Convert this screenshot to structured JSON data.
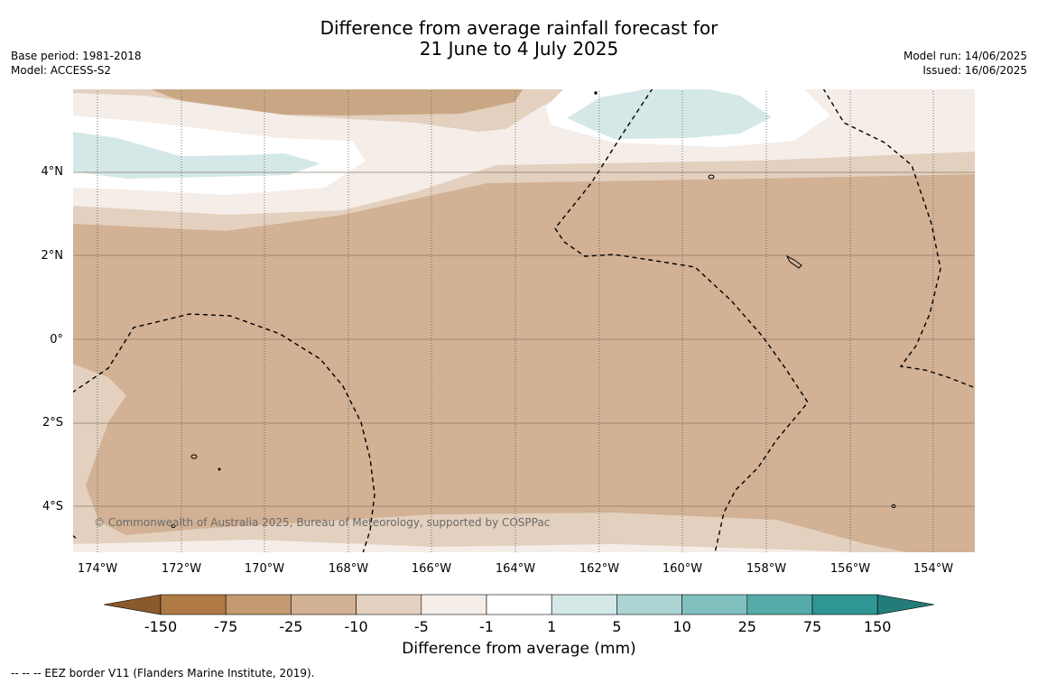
{
  "title": {
    "line1": "Difference from average rainfall forecast for",
    "line2": "21 June to 4 July 2025"
  },
  "meta": {
    "base_period": "Base period: 1981-2018",
    "model": "Model: ACCESS-S2",
    "model_run": "Model run: 14/06/2025",
    "issued": "Issued: 16/06/2025"
  },
  "axes": {
    "x_ticks": [
      "174°W",
      "172°W",
      "170°W",
      "168°W",
      "166°W",
      "164°W",
      "162°W",
      "160°W",
      "158°W",
      "156°W",
      "154°W"
    ],
    "y_ticks": [
      "4°N",
      "2°N",
      "0°",
      "2°S",
      "4°S"
    ]
  },
  "copyright": "© Commonwealth of Australia 2025, Bureau of Meteorology, supported by COSPPac",
  "colorbar": {
    "labels": [
      "-150",
      "-75",
      "-25",
      "-10",
      "-5",
      "-1",
      "1",
      "5",
      "10",
      "25",
      "75",
      "150"
    ],
    "colors": [
      "#8a5a2b",
      "#b07a45",
      "#c49a70",
      "#d2b194",
      "#e3d0be",
      "#f5ede8",
      "#ffffff",
      "#d4e8e7",
      "#abd4d3",
      "#80c1bf",
      "#56aaa8",
      "#2f9693",
      "#237c7a"
    ],
    "title": "Difference from average (mm)"
  },
  "footer": "--  --  -- EEZ border V11 (Flanders Marine Institute, 2019)."
}
